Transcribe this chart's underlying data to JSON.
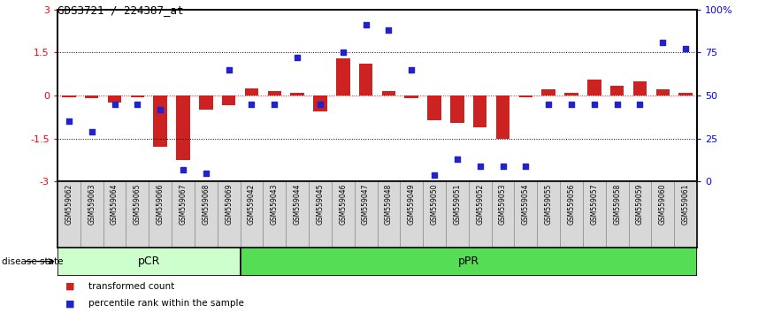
{
  "title": "GDS3721 / 224387_at",
  "samples": [
    "GSM559062",
    "GSM559063",
    "GSM559064",
    "GSM559065",
    "GSM559066",
    "GSM559067",
    "GSM559068",
    "GSM559069",
    "GSM559042",
    "GSM559043",
    "GSM559044",
    "GSM559045",
    "GSM559046",
    "GSM559047",
    "GSM559048",
    "GSM559049",
    "GSM559050",
    "GSM559051",
    "GSM559052",
    "GSM559053",
    "GSM559054",
    "GSM559055",
    "GSM559056",
    "GSM559057",
    "GSM559058",
    "GSM559059",
    "GSM559060",
    "GSM559061"
  ],
  "transformed_count": [
    -0.05,
    -0.08,
    -0.25,
    -0.05,
    -1.8,
    -2.25,
    -0.5,
    -0.35,
    0.25,
    0.15,
    0.1,
    -0.55,
    1.3,
    1.1,
    0.15,
    -0.1,
    -0.85,
    -0.95,
    -1.1,
    -1.5,
    -0.05,
    0.2,
    0.1,
    0.55,
    0.35,
    0.5,
    0.2,
    0.1
  ],
  "percentile_rank": [
    35,
    29,
    45,
    45,
    42,
    7,
    5,
    65,
    45,
    45,
    72,
    45,
    75,
    91,
    88,
    65,
    4,
    13,
    9,
    9,
    9,
    45,
    45,
    45,
    45,
    45,
    81,
    77
  ],
  "pcr_count": 8,
  "ppr_count": 20,
  "ylim": [
    -3,
    3
  ],
  "bar_color": "#cc2222",
  "dot_color": "#2222cc",
  "pCR_color": "#ccffcc",
  "pPR_color": "#55dd55",
  "bg_color": "#d8d8d8"
}
